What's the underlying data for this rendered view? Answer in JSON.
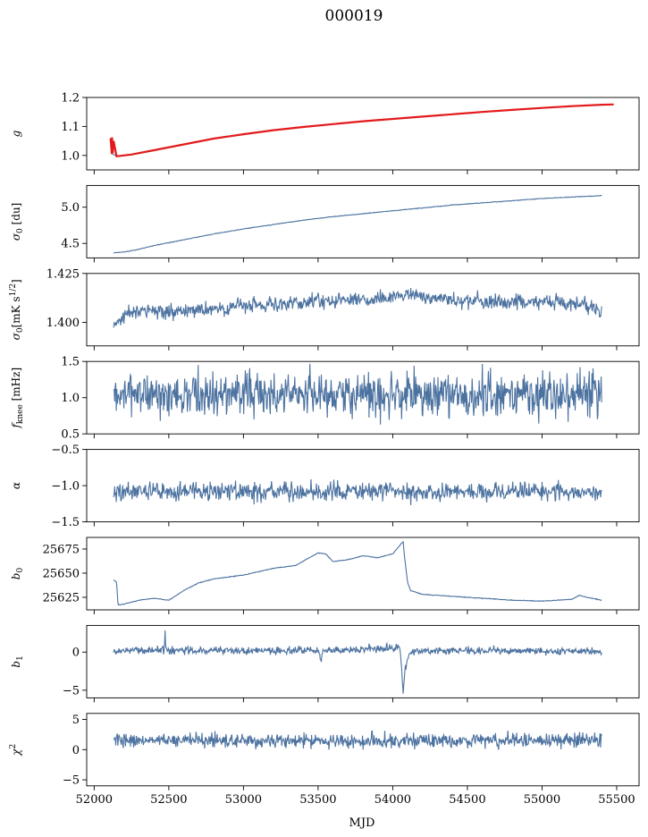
{
  "figure": {
    "title": "000019",
    "xlabel": "MJD",
    "line_color": "#4c72a0",
    "fit_color": "#e31a1c"
  },
  "chart_data": [
    {
      "type": "line",
      "ylabel": "g",
      "ylim": [
        0.95,
        1.2
      ],
      "xlim": [
        51950,
        55650
      ],
      "yticks": [
        1.0,
        1.1,
        1.2
      ],
      "yticklabels": [
        "1.0",
        "1.1",
        "1.2"
      ],
      "series": [
        {
          "x": [
            52120,
            52160,
            52250,
            52400,
            52600,
            52800,
            53000,
            53200,
            53400,
            53600,
            53800,
            54000,
            54200,
            54400,
            54600,
            54800,
            55000,
            55200,
            55400,
            55470
          ],
          "y": [
            1.005,
            0.998,
            1.003,
            1.018,
            1.038,
            1.058,
            1.073,
            1.087,
            1.098,
            1.108,
            1.118,
            1.126,
            1.134,
            1.142,
            1.15,
            1.157,
            1.164,
            1.17,
            1.175,
            1.176
          ]
        },
        {
          "x": [
            52110,
            52118,
            52120,
            52125,
            52130,
            52150,
            52250,
            52400,
            52600,
            52800,
            53000,
            53200,
            53400,
            53600,
            53800,
            54000,
            54200,
            54400,
            54600,
            54800,
            55000,
            55200,
            55400,
            55480
          ],
          "y": [
            1.06,
            1.005,
            1.062,
            1.008,
            1.05,
            0.997,
            1.003,
            1.018,
            1.038,
            1.058,
            1.073,
            1.087,
            1.098,
            1.108,
            1.118,
            1.126,
            1.134,
            1.142,
            1.15,
            1.157,
            1.164,
            1.17,
            1.175,
            1.176
          ]
        }
      ]
    },
    {
      "type": "line",
      "ylabel": "σ0 [du]",
      "ylim": [
        4.3,
        5.3
      ],
      "xlim": [
        51950,
        55650
      ],
      "yticks": [
        4.5,
        5.0
      ],
      "yticklabels": [
        "4.5",
        "5.0"
      ],
      "series": [
        {
          "x": [
            52130,
            52200,
            52300,
            52400,
            52600,
            52800,
            53000,
            53200,
            53400,
            53600,
            53800,
            54000,
            54200,
            54400,
            54600,
            54800,
            55000,
            55200,
            55400
          ],
          "y": [
            4.37,
            4.38,
            4.42,
            4.47,
            4.55,
            4.63,
            4.7,
            4.76,
            4.82,
            4.87,
            4.91,
            4.95,
            4.99,
            5.03,
            5.06,
            5.09,
            5.12,
            5.14,
            5.16
          ]
        }
      ]
    },
    {
      "type": "line",
      "ylabel": "σ0[mK s^1/2]",
      "ylim": [
        1.388,
        1.425
      ],
      "xlim": [
        51950,
        55650
      ],
      "yticks": [
        1.4,
        1.425
      ],
      "yticklabels": [
        "1.400",
        "1.425"
      ],
      "series": [
        {
          "x": [
            52130,
            52200,
            52300,
            52500,
            52700,
            52900,
            53100,
            53300,
            53500,
            53700,
            53900,
            54100,
            54300,
            54500,
            54700,
            54900,
            55100,
            55300,
            55400
          ],
          "y": [
            1.399,
            1.404,
            1.406,
            1.405,
            1.406,
            1.408,
            1.409,
            1.409,
            1.411,
            1.411,
            1.412,
            1.414,
            1.412,
            1.411,
            1.411,
            1.41,
            1.41,
            1.409,
            1.405
          ]
        }
      ]
    },
    {
      "type": "line",
      "ylabel": "fknee [mHz]",
      "ylim": [
        0.5,
        1.5
      ],
      "xlim": [
        51950,
        55650
      ],
      "yticks": [
        0.5,
        1.0,
        1.5
      ],
      "yticklabels": [
        "0.5",
        "1.0",
        "1.5"
      ],
      "series": [
        {
          "x": [
            52130,
            55400
          ],
          "y": [
            1.05,
            1.05
          ]
        }
      ]
    },
    {
      "type": "line",
      "ylabel": "α",
      "ylim": [
        -1.5,
        -0.5
      ],
      "xlim": [
        51950,
        55650
      ],
      "yticks": [
        -1.5,
        -1.0,
        -0.5
      ],
      "yticklabels": [
        "−1.5",
        "−1.0",
        "−0.5"
      ],
      "series": [
        {
          "x": [
            52130,
            55400
          ],
          "y": [
            -1.08,
            -1.08
          ]
        }
      ]
    },
    {
      "type": "line",
      "ylabel": "b0",
      "ylim": [
        25612,
        25687
      ],
      "xlim": [
        51950,
        55650
      ],
      "yticks": [
        25625,
        25650,
        25675
      ],
      "yticklabels": [
        "25625",
        "25650",
        "25675"
      ],
      "series": [
        {
          "x": [
            52130,
            52150,
            52160,
            52200,
            52300,
            52400,
            52500,
            52550,
            52600,
            52700,
            52800,
            53000,
            53200,
            53350,
            53500,
            53550,
            53600,
            53700,
            53800,
            53900,
            54000,
            54070,
            54080,
            54100,
            54120,
            54200,
            54400,
            54600,
            54800,
            55000,
            55200,
            55250,
            55300,
            55400
          ],
          "y": [
            25643,
            25641,
            25617,
            25618,
            25622,
            25624,
            25622,
            25627,
            25632,
            25640,
            25644,
            25648,
            25655,
            25658,
            25671,
            25670,
            25662,
            25664,
            25668,
            25666,
            25670,
            25683,
            25665,
            25640,
            25632,
            25628,
            25626,
            25624,
            25622,
            25621,
            25623,
            25627,
            25625,
            25622
          ]
        }
      ]
    },
    {
      "type": "line",
      "ylabel": "b1",
      "ylim": [
        -6,
        3.5
      ],
      "xlim": [
        51950,
        55650
      ],
      "yticks": [
        -5,
        0
      ],
      "yticklabels": [
        "−5",
        "0"
      ],
      "series": [
        {
          "x": [
            52130,
            52470,
            52475,
            52480,
            52485,
            53500,
            53520,
            53530,
            53560,
            54050,
            54070,
            54080,
            54085,
            54100,
            54150,
            54200,
            54300,
            55400
          ],
          "y": [
            0.2,
            0.3,
            2.8,
            0.3,
            0.2,
            0.2,
            -1.2,
            0.3,
            0.2,
            0.6,
            -5.3,
            -2.5,
            -2.0,
            -0.6,
            0.2,
            0.1,
            0.2,
            0.1
          ]
        }
      ]
    },
    {
      "type": "line",
      "ylabel": "χ2",
      "ylim": [
        -6,
        6
      ],
      "xlim": [
        51950,
        55650
      ],
      "yticks": [
        -5,
        0,
        5
      ],
      "yticklabels": [
        "−5",
        "0",
        "5"
      ],
      "xticks": [
        52000,
        52500,
        53000,
        53500,
        54000,
        54500,
        55000,
        55500
      ],
      "xticklabels": [
        "52000",
        "52500",
        "53000",
        "53500",
        "54000",
        "54500",
        "55000",
        "55500"
      ],
      "series": [
        {
          "x": [
            52130,
            55400
          ],
          "y": [
            1.5,
            1.5
          ]
        }
      ]
    }
  ]
}
